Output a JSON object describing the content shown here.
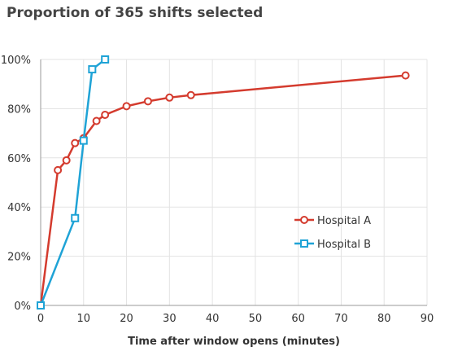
{
  "chart_data": {
    "type": "line",
    "title": "Proportion of 365 shifts selected",
    "xlabel": "Time after window opens (minutes)",
    "ylabel": "",
    "xlim": [
      0,
      90
    ],
    "ylim": [
      0,
      100
    ],
    "x_ticks": [
      0,
      10,
      20,
      30,
      40,
      50,
      60,
      70,
      80,
      90
    ],
    "y_ticks": [
      "0%",
      "20%",
      "40%",
      "60%",
      "80%",
      "100%"
    ],
    "y_tick_values": [
      0,
      20,
      40,
      60,
      80,
      100
    ],
    "grid": true,
    "legend_position": "center-right",
    "series": [
      {
        "name": "Hospital A",
        "color": "#d43b2e",
        "marker": "circle",
        "points": [
          [
            0,
            0
          ],
          [
            4,
            55
          ],
          [
            6,
            59
          ],
          [
            8,
            66
          ],
          [
            10,
            68
          ],
          [
            13,
            75
          ],
          [
            15,
            77.5
          ],
          [
            20,
            81
          ],
          [
            25,
            83
          ],
          [
            30,
            84.5
          ],
          [
            35,
            85.5
          ],
          [
            85,
            93.5
          ]
        ]
      },
      {
        "name": "Hospital B",
        "color": "#1fa3d6",
        "marker": "square",
        "points": [
          [
            0,
            0
          ],
          [
            8,
            35.5
          ],
          [
            10,
            67
          ],
          [
            12,
            96
          ],
          [
            15,
            100
          ]
        ]
      }
    ]
  }
}
